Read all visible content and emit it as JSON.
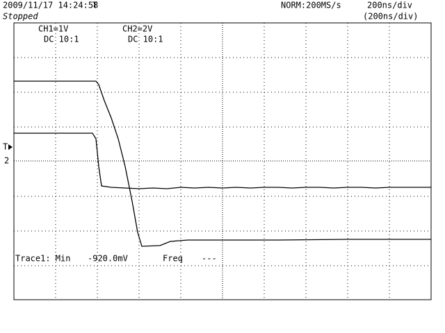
{
  "header": {
    "datetime": "2009/11/17  14:24:58",
    "status": "Stopped",
    "mode": "NORM:200MS/s",
    "timebase": "200ns/div",
    "timebase_sub": "(200ns/div)"
  },
  "channels": [
    {
      "scale": "CH1=1V",
      "coupling": "DC  10:1"
    },
    {
      "scale": "CH2=2V",
      "coupling": "DC  10:1"
    }
  ],
  "measurement": {
    "label": "Trace1: Min",
    "value": "-920.0mV",
    "freq_label": "Freq",
    "freq_value": "---"
  },
  "markers": {
    "trigger_top": "T",
    "trigger_left": "T",
    "ground": "2"
  }
}
